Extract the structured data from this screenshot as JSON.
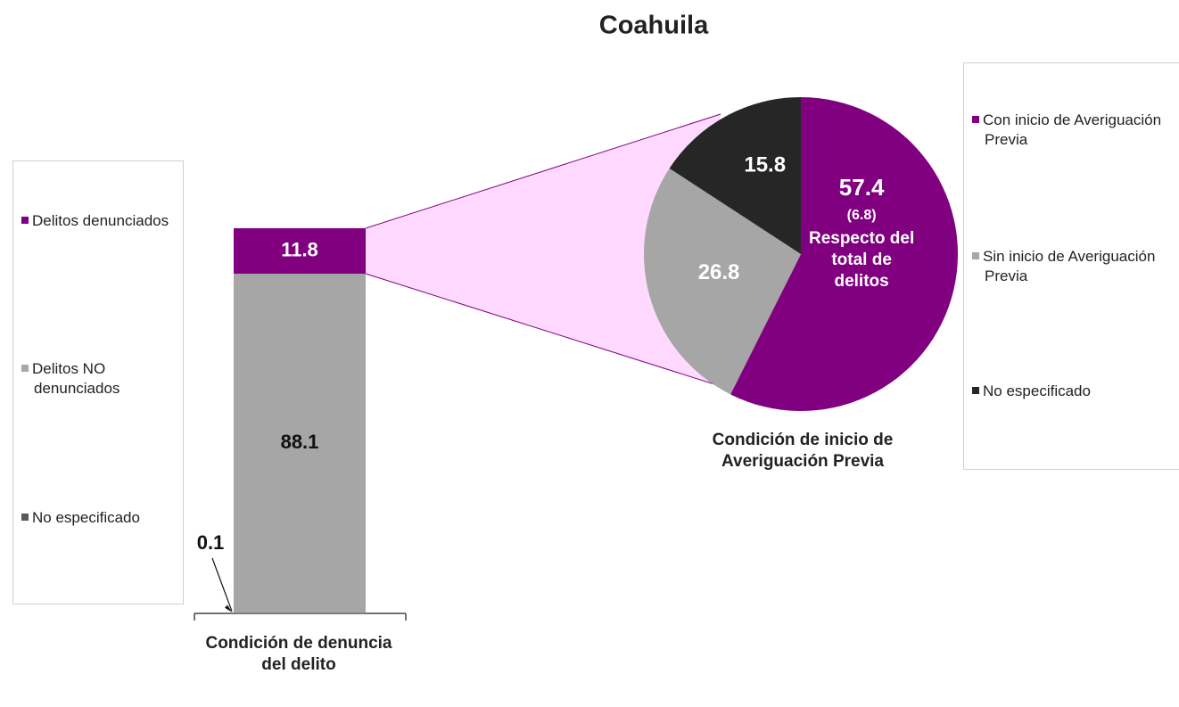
{
  "title": "Coahuila",
  "chart_data": [
    {
      "type": "bar",
      "stacked": true,
      "categories": [
        "Condición de denuncia del delito"
      ],
      "series": [
        {
          "name": "Delitos denunciados",
          "color": "#800080",
          "values": [
            11.8
          ]
        },
        {
          "name": "Delitos NO denunciados",
          "color": "#a6a6a6",
          "values": [
            88.1
          ]
        },
        {
          "name": "No especificado",
          "color": "#595959",
          "values": [
            0.1
          ]
        }
      ]
    },
    {
      "type": "pie",
      "xlabel": "Condición de inicio de Averiguación Previa",
      "categories": [
        "Con inicio de Averiguación Previa",
        "Sin inicio de Averiguación Previa",
        "No especificado"
      ],
      "values": [
        57.4,
        26.8,
        15.8
      ],
      "colors": [
        "#800080",
        "#a6a6a6",
        "#262626"
      ],
      "share_of_total": {
        "value": 6.8,
        "label": "(6.8)"
      },
      "share_note": "Respecto del total de delitos"
    }
  ]
}
